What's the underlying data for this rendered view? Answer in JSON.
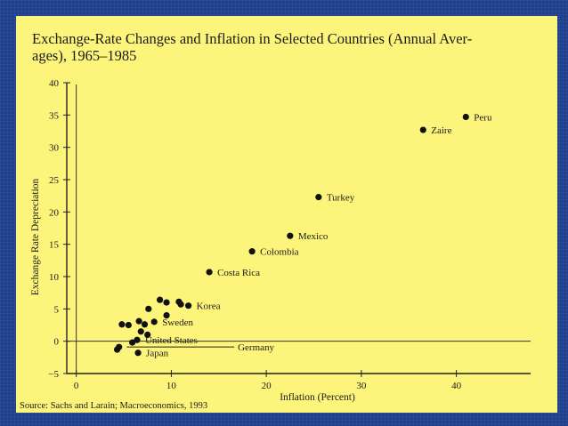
{
  "slide": {
    "title": "Exchange-Rate Changes and Inflation in Selected Countries (Annual Aver-ages), 1965–1985",
    "title_line1": "Exchange-Rate Changes and Inflation in Selected Countries (Annual Aver-",
    "title_line2": "ages), 1965–1985",
    "source": "Source: Sachs and Larain; Macroeconomics, 1993",
    "background_color": "#1f3f8f",
    "panel_color": "#fdf57b"
  },
  "chart_data": {
    "type": "scatter",
    "title": "Exchange-Rate Changes and Inflation in Selected Countries (Annual Aver-ages), 1965–1985",
    "xlabel": "Inflation (Percent)",
    "ylabel": "Exchange Rate Depreciation",
    "xlim": [
      -1,
      48
    ],
    "ylim": [
      -5,
      40
    ],
    "x_ticks": [
      0,
      10,
      20,
      30,
      40
    ],
    "y_ticks": [
      -5,
      0,
      5,
      10,
      15,
      20,
      25,
      30,
      35,
      40
    ],
    "grid": false,
    "series": [
      {
        "points": [
          {
            "x": 41,
            "y": 34.7,
            "label": "Peru"
          },
          {
            "x": 36.5,
            "y": 32.7,
            "label": "Zaire"
          },
          {
            "x": 25.5,
            "y": 22.3,
            "label": "Turkey"
          },
          {
            "x": 22.5,
            "y": 16.3,
            "label": "Mexico"
          },
          {
            "x": 18.5,
            "y": 13.9,
            "label": "Colombia"
          },
          {
            "x": 14,
            "y": 10.7,
            "label": "Costa Rica"
          },
          {
            "x": 11.8,
            "y": 5.5,
            "label": "Korea"
          },
          {
            "x": 8.2,
            "y": 3.0,
            "label": "Sweden"
          },
          {
            "x": 6.4,
            "y": 0.2,
            "label": "United States"
          },
          {
            "x": 6.5,
            "y": -1.8,
            "label": "Japan"
          },
          {
            "x": 8.8,
            "y": 6.4,
            "label": ""
          },
          {
            "x": 9.5,
            "y": 6.0,
            "label": ""
          },
          {
            "x": 10.8,
            "y": 6.1,
            "label": ""
          },
          {
            "x": 11,
            "y": 5.7,
            "label": ""
          },
          {
            "x": 7.6,
            "y": 5.0,
            "label": ""
          },
          {
            "x": 9.5,
            "y": 4.0,
            "label": ""
          },
          {
            "x": 4.8,
            "y": 2.6,
            "label": ""
          },
          {
            "x": 5.5,
            "y": 2.5,
            "label": ""
          },
          {
            "x": 6.6,
            "y": 3.1,
            "label": ""
          },
          {
            "x": 7.2,
            "y": 2.6,
            "label": ""
          },
          {
            "x": 6.8,
            "y": 1.5,
            "label": ""
          },
          {
            "x": 7.5,
            "y": 1.0,
            "label": ""
          },
          {
            "x": 5.9,
            "y": -0.2,
            "label": ""
          },
          {
            "x": 4.5,
            "y": -0.9,
            "label": ""
          },
          {
            "x": 4.3,
            "y": -1.3,
            "label": ""
          }
        ]
      }
    ],
    "annotations": [
      {
        "text": "Germany",
        "x": 17,
        "y": -1.3
      }
    ]
  }
}
